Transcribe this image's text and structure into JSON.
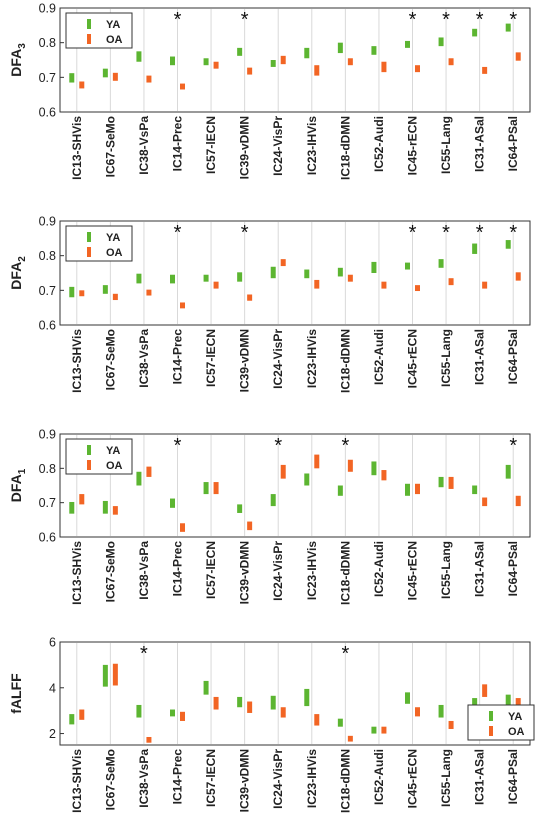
{
  "colors": {
    "ya": "#5cb531",
    "oa": "#f26524",
    "grid": "#d9d9d9",
    "axis": "#333333"
  },
  "chart_data": [
    {
      "type": "range",
      "ylabel": "DFA",
      "ylabel_sub": "3",
      "ylim": [
        0.6,
        0.9
      ],
      "yticks": [
        "0.6",
        "0.7",
        "0.8",
        "0.9"
      ],
      "yticks_values": [
        0.6,
        0.7,
        0.8,
        0.9
      ],
      "legend_position": "top-left",
      "categories": [
        "IC13-SHVis",
        "IC67-SeMo",
        "IC38-VsPa",
        "IC14-Prec",
        "IC57-lECN",
        "IC39-vDMN",
        "IC24-VisPr",
        "IC23-IHVis",
        "IC18-dDMN",
        "IC52-Audi",
        "IC45-rECN",
        "IC55-Lang",
        "IC31-ASal",
        "IC64-PSal"
      ],
      "series": [
        {
          "name": "YA",
          "low": [
            0.685,
            0.7,
            0.745,
            0.735,
            0.735,
            0.762,
            0.73,
            0.755,
            0.77,
            0.765,
            0.785,
            0.79,
            0.818,
            0.832
          ],
          "high": [
            0.712,
            0.725,
            0.775,
            0.76,
            0.755,
            0.785,
            0.75,
            0.785,
            0.8,
            0.79,
            0.805,
            0.815,
            0.84,
            0.855
          ]
        },
        {
          "name": "OA",
          "low": [
            0.668,
            0.69,
            0.685,
            0.665,
            0.725,
            0.708,
            0.738,
            0.705,
            0.735,
            0.715,
            0.715,
            0.735,
            0.71,
            0.748
          ],
          "high": [
            0.688,
            0.713,
            0.705,
            0.682,
            0.745,
            0.728,
            0.762,
            0.735,
            0.755,
            0.745,
            0.735,
            0.755,
            0.73,
            0.772
          ]
        }
      ],
      "significant": [
        "",
        "",
        "",
        "*",
        "",
        "*",
        "",
        "",
        "",
        "",
        "*",
        "*",
        "*",
        "*"
      ]
    },
    {
      "type": "range",
      "ylabel": "DFA",
      "ylabel_sub": "2",
      "ylim": [
        0.6,
        0.9
      ],
      "yticks": [
        "0.6",
        "0.7",
        "0.8",
        "0.9"
      ],
      "yticks_values": [
        0.6,
        0.7,
        0.8,
        0.9
      ],
      "legend_position": "top-left",
      "categories": [
        "IC13-SHVis",
        "IC67-SeMo",
        "IC38-VsPa",
        "IC14-Prec",
        "IC57-lECN",
        "IC39-vDMN",
        "IC24-VisPr",
        "IC23-IHVis",
        "IC18-dDMN",
        "IC52-Audi",
        "IC45-rECN",
        "IC55-Lang",
        "IC31-ASal",
        "IC64-PSal"
      ],
      "series": [
        {
          "name": "YA",
          "low": [
            0.68,
            0.69,
            0.72,
            0.72,
            0.725,
            0.725,
            0.735,
            0.735,
            0.74,
            0.75,
            0.76,
            0.765,
            0.805,
            0.82
          ],
          "high": [
            0.71,
            0.715,
            0.748,
            0.745,
            0.745,
            0.752,
            0.768,
            0.76,
            0.765,
            0.782,
            0.78,
            0.79,
            0.835,
            0.845
          ]
        },
        {
          "name": "OA",
          "low": [
            0.683,
            0.672,
            0.685,
            0.648,
            0.705,
            0.67,
            0.77,
            0.705,
            0.725,
            0.705,
            0.698,
            0.715,
            0.705,
            0.728
          ],
          "high": [
            0.7,
            0.69,
            0.702,
            0.665,
            0.725,
            0.688,
            0.79,
            0.73,
            0.745,
            0.725,
            0.715,
            0.735,
            0.725,
            0.752
          ]
        }
      ],
      "significant": [
        "",
        "",
        "",
        "*",
        "",
        "*",
        "",
        "",
        "",
        "",
        "*",
        "*",
        "*",
        "*"
      ]
    },
    {
      "type": "range",
      "ylabel": "DFA",
      "ylabel_sub": "1",
      "ylim": [
        0.6,
        0.9
      ],
      "yticks": [
        "0.6",
        "0.7",
        "0.8",
        "0.9"
      ],
      "yticks_values": [
        0.6,
        0.7,
        0.8,
        0.9
      ],
      "legend_position": "top-left",
      "categories": [
        "IC13-SHVis",
        "IC67-SeMo",
        "IC38-VsPa",
        "IC14-Prec",
        "IC57-lECN",
        "IC39-vDMN",
        "IC24-VisPr",
        "IC23-IHVis",
        "IC18-dDMN",
        "IC52-Audi",
        "IC45-rECN",
        "IC55-Lang",
        "IC31-ASal",
        "IC64-PSal"
      ],
      "series": [
        {
          "name": "YA",
          "low": [
            0.668,
            0.668,
            0.75,
            0.685,
            0.725,
            0.67,
            0.69,
            0.75,
            0.72,
            0.78,
            0.72,
            0.745,
            0.725,
            0.77
          ],
          "high": [
            0.702,
            0.705,
            0.79,
            0.712,
            0.76,
            0.695,
            0.725,
            0.785,
            0.75,
            0.82,
            0.755,
            0.775,
            0.75,
            0.81
          ]
        },
        {
          "name": "OA",
          "low": [
            0.695,
            0.665,
            0.775,
            0.615,
            0.725,
            0.62,
            0.77,
            0.8,
            0.79,
            0.765,
            0.725,
            0.74,
            0.69,
            0.69
          ],
          "high": [
            0.725,
            0.69,
            0.805,
            0.64,
            0.76,
            0.645,
            0.81,
            0.84,
            0.825,
            0.795,
            0.755,
            0.775,
            0.715,
            0.72
          ]
        }
      ],
      "significant": [
        "",
        "",
        "",
        "*",
        "",
        "",
        "*",
        "",
        "*",
        "",
        "",
        "",
        "",
        "*"
      ]
    },
    {
      "type": "range",
      "ylabel": "fALFF",
      "ylabel_sub": "",
      "ylim": [
        1.5,
        6
      ],
      "yticks": [
        "2",
        "4",
        "6"
      ],
      "yticks_values": [
        2,
        4,
        6
      ],
      "legend_position": "bottom-right",
      "categories": [
        "IC13-SHVis",
        "IC67-SeMo",
        "IC38-VsPa",
        "IC14-Prec",
        "IC57-lECN",
        "IC39-vDMN",
        "IC24-VisPr",
        "IC23-IHVis",
        "IC18-dDMN",
        "IC52-Audi",
        "IC45-rECN",
        "IC55-Lang",
        "IC31-ASal",
        "IC64-PSal"
      ],
      "series": [
        {
          "name": "YA",
          "low": [
            2.4,
            4.05,
            2.7,
            2.75,
            3.7,
            3.15,
            3.05,
            3.2,
            2.3,
            2.0,
            3.3,
            2.7,
            3.05,
            3.25
          ],
          "high": [
            2.85,
            5.0,
            3.25,
            3.05,
            4.3,
            3.6,
            3.65,
            3.95,
            2.65,
            2.3,
            3.8,
            3.25,
            3.55,
            3.7
          ]
        },
        {
          "name": "OA",
          "low": [
            2.6,
            4.1,
            1.6,
            2.55,
            3.05,
            2.9,
            2.7,
            2.35,
            1.65,
            2.0,
            2.75,
            2.2,
            3.6,
            3.05
          ],
          "high": [
            3.05,
            5.05,
            1.85,
            2.95,
            3.6,
            3.4,
            3.15,
            2.85,
            1.9,
            2.3,
            3.15,
            2.55,
            4.15,
            3.55
          ]
        }
      ],
      "significant": [
        "",
        "",
        "*",
        "",
        "",
        "",
        "",
        "",
        "*",
        "",
        "",
        "",
        "",
        ""
      ]
    }
  ]
}
